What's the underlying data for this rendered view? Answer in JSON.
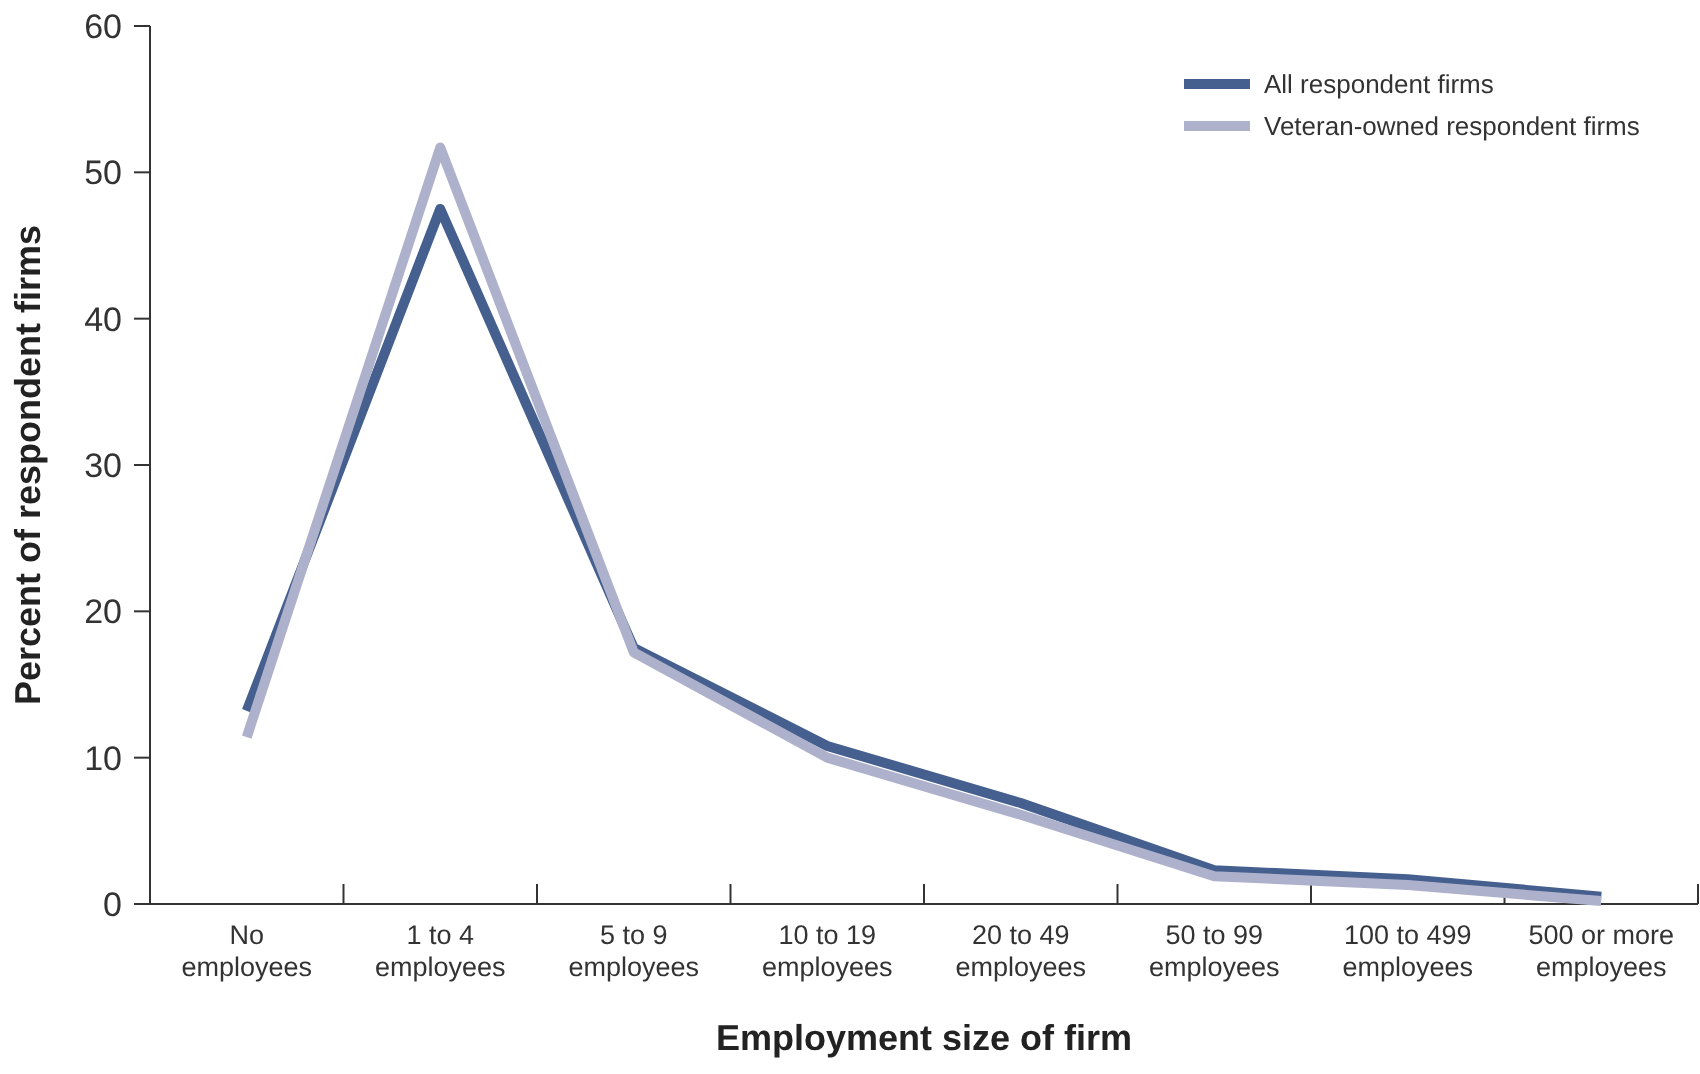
{
  "chart_data": {
    "type": "line",
    "xlabel": "Employment size of firm",
    "ylabel": "Percent of respondent firms",
    "categories": [
      "No employees",
      "1 to 4 employees",
      "5 to 9 employees",
      "10 to 19 employees",
      "20 to 49 employees",
      "50 to 99 employees",
      "100 to 499 employees",
      "500 or more employees"
    ],
    "series": [
      {
        "name": "All respondent firms",
        "color": "#455f8e",
        "values": [
          13.2,
          47.5,
          17.5,
          10.8,
          6.9,
          2.3,
          1.7,
          0.5
        ]
      },
      {
        "name": "Veteran-owned respondent firms",
        "color": "#aeb1cb",
        "values": [
          11.4,
          51.7,
          17.2,
          10.0,
          6.1,
          1.9,
          1.3,
          0.2
        ]
      }
    ],
    "ylim": [
      0,
      60
    ],
    "yticks": [
      0,
      10,
      20,
      30,
      40,
      50,
      60
    ],
    "grid": false,
    "legend": "top right",
    "marker": "none",
    "line_style": "solid"
  }
}
